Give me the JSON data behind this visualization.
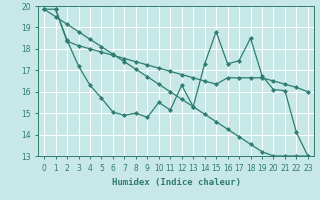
{
  "xlabel": "Humidex (Indice chaleur)",
  "background_color": "#c8e8e8",
  "grid_color": "#ffffff",
  "line_color": "#2e7d6e",
  "xlim": [
    -0.5,
    23.5
  ],
  "ylim": [
    13,
    20
  ],
  "yticks": [
    13,
    14,
    15,
    16,
    17,
    18,
    19,
    20
  ],
  "xticks": [
    0,
    1,
    2,
    3,
    4,
    5,
    6,
    7,
    8,
    9,
    10,
    11,
    12,
    13,
    14,
    15,
    16,
    17,
    18,
    19,
    20,
    21,
    22,
    23
  ],
  "line_straight_x": [
    0,
    1,
    2,
    3,
    4,
    5,
    6,
    7,
    8,
    9,
    10,
    11,
    12,
    13,
    14,
    15,
    16,
    17,
    18,
    19,
    20,
    21,
    22,
    23
  ],
  "line_straight_y": [
    19.85,
    19.5,
    19.15,
    18.8,
    18.45,
    18.1,
    17.75,
    17.4,
    17.05,
    16.7,
    16.35,
    16.0,
    15.65,
    15.3,
    14.95,
    14.6,
    14.25,
    13.9,
    13.55,
    13.2,
    13.0,
    13.0,
    13.0,
    13.0
  ],
  "line_zigzag_x": [
    1,
    2,
    3,
    4,
    5,
    6,
    7,
    8,
    9,
    10,
    11,
    12,
    13,
    14,
    15,
    16,
    17,
    18,
    19,
    20,
    21,
    22,
    23
  ],
  "line_zigzag_y": [
    19.85,
    18.4,
    17.2,
    16.3,
    15.7,
    15.05,
    14.9,
    15.0,
    14.8,
    15.5,
    15.15,
    16.3,
    15.3,
    17.3,
    18.8,
    17.3,
    17.45,
    18.5,
    16.75,
    16.1,
    16.05,
    14.1,
    13.0
  ],
  "line_upper_x": [
    0,
    1,
    2,
    3,
    4,
    5,
    6,
    7,
    8,
    9,
    10,
    11,
    12,
    13,
    14,
    15,
    16,
    17,
    18,
    19,
    20,
    21,
    22,
    23
  ],
  "line_upper_y": [
    19.85,
    19.85,
    18.35,
    18.15,
    18.0,
    17.85,
    17.7,
    17.55,
    17.4,
    17.25,
    17.1,
    16.95,
    16.8,
    16.65,
    16.5,
    16.35,
    16.65,
    16.65,
    16.65,
    16.65,
    16.5,
    16.35,
    16.2,
    16.0
  ]
}
